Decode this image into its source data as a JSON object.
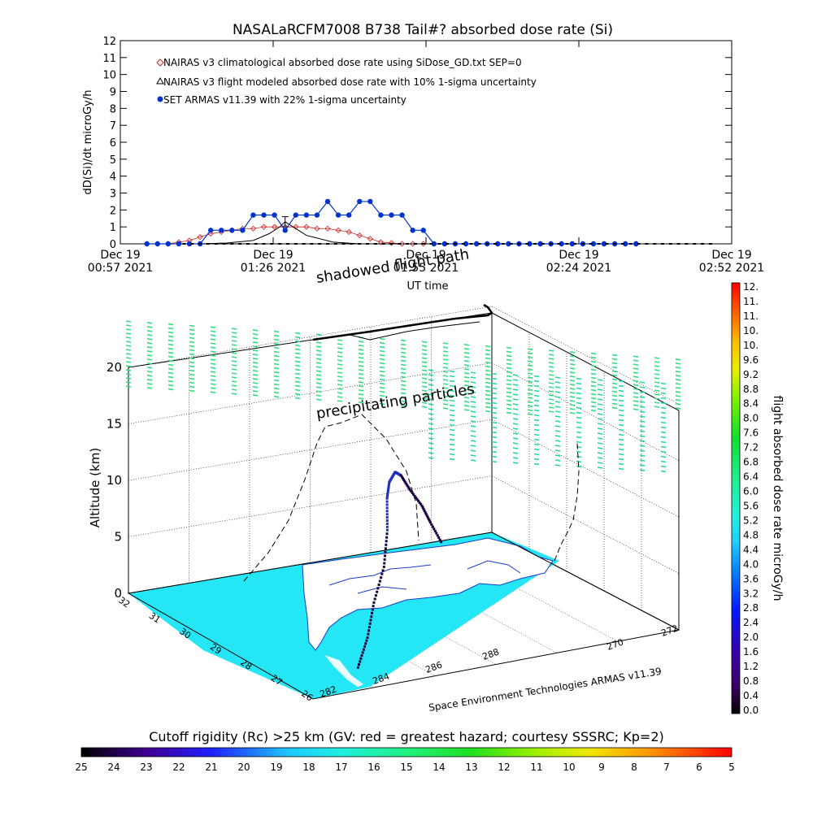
{
  "chart_data": [
    {
      "type": "line",
      "title": "NASALaRCFM7008  B738 Tail#? absorbed dose rate (Si)",
      "xlabel": "UT time",
      "ylabel": "dD(Si)/dt microGy/h",
      "ylim": [
        0,
        12
      ],
      "yticks": [
        "0",
        "1",
        "2",
        "3",
        "4",
        "5",
        "6",
        "7",
        "8",
        "9",
        "10",
        "11",
        "12"
      ],
      "xticks": [
        {
          "date": "Dec 19",
          "time": "00:57 2021"
        },
        {
          "date": "Dec 19",
          "time": "01:26 2021"
        },
        {
          "date": "Dec 19",
          "time": "01:55 2021"
        },
        {
          "date": "Dec 19",
          "time": "02:24 2021"
        },
        {
          "date": "Dec 19",
          "time": "02:52 2021"
        }
      ],
      "x_unit": "minutes after Dec 19 00:57 2021 UT",
      "xlim": [
        0,
        115
      ],
      "legend": [
        "NAIRAS v3 climatological absorbed dose rate using SiDose_GD.txt SEP=0",
        "NAIRAS v3 flight modeled absorbed dose rate with 10% 1-sigma uncertainty",
        "SET ARMAS v11.39 with 22% 1-sigma uncertainty"
      ],
      "series": [
        {
          "name": "NAIRAS v3 climatological absorbed dose rate using SiDose_GD.txt SEP=0",
          "color": "#cc2222",
          "x": [
            5,
            7,
            9,
            11,
            13,
            15,
            17,
            19,
            21,
            23,
            25,
            27,
            29,
            31,
            33,
            35,
            37,
            39,
            41,
            43,
            45,
            47,
            49,
            51,
            53,
            55,
            57,
            59,
            61,
            63,
            65,
            67,
            69,
            71,
            73,
            75,
            77,
            79,
            81,
            83,
            85,
            87,
            89,
            91,
            93,
            95,
            97
          ],
          "y": [
            0,
            0,
            0,
            0.1,
            0.2,
            0.4,
            0.6,
            0.7,
            0.8,
            0.9,
            0.9,
            1.0,
            1.0,
            1.0,
            1.0,
            1.0,
            0.9,
            0.9,
            0.8,
            0.7,
            0.5,
            0.3,
            0.1,
            0.05,
            0,
            0,
            0,
            0,
            0,
            0,
            0,
            0,
            0,
            0,
            0,
            0,
            0,
            0,
            0,
            0,
            0,
            0,
            0,
            0,
            0,
            0,
            0
          ]
        },
        {
          "name": "NAIRAS v3 flight modeled absorbed dose rate with 10% 1-sigma uncertainty",
          "color": "#000000",
          "x": [
            5,
            10,
            15,
            20,
            25,
            28,
            30,
            31,
            35,
            40,
            45,
            50,
            55,
            60,
            65,
            70,
            75,
            80,
            85,
            90,
            95,
            97
          ],
          "y": [
            0,
            0,
            0,
            0.05,
            0.2,
            0.6,
            1.0,
            1.3,
            0.5,
            0.1,
            0,
            0,
            0,
            0,
            0,
            0,
            0,
            0,
            0,
            0,
            0,
            0
          ],
          "err": [
            0,
            0,
            0,
            0,
            0,
            0,
            0,
            0.3,
            0,
            0,
            0,
            0,
            0,
            0,
            0,
            0,
            0,
            0,
            0,
            0,
            0,
            0
          ]
        },
        {
          "name": "SET ARMAS v11.39 with 22% 1-sigma uncertainty",
          "color": "#0033cc",
          "x": [
            5,
            7,
            9,
            11,
            13,
            15,
            17,
            19,
            21,
            23,
            25,
            27,
            29,
            31,
            33,
            35,
            37,
            39,
            41,
            43,
            45,
            47,
            49,
            51,
            53,
            55,
            57,
            59,
            61,
            63,
            65,
            67,
            69,
            71,
            73,
            75,
            77,
            79,
            81,
            83,
            85,
            87,
            89,
            91,
            93,
            95,
            97
          ],
          "y": [
            0,
            0,
            0,
            0,
            0,
            0,
            0.8,
            0.8,
            0.8,
            0.8,
            1.7,
            1.7,
            1.7,
            0.8,
            1.7,
            1.7,
            1.7,
            2.5,
            1.7,
            1.7,
            2.5,
            2.5,
            1.7,
            1.7,
            1.7,
            0.8,
            0.8,
            0,
            0,
            0,
            0,
            0,
            0,
            0,
            0,
            0,
            0,
            0,
            0,
            0,
            0,
            0,
            0,
            0,
            0,
            0,
            0
          ]
        }
      ]
    },
    {
      "type": "scatter",
      "title": "",
      "xlabel": "Space Environment Technologies ARMAS v11.39",
      "ylabel": "Altitude (km)",
      "zticks": [
        "0",
        "5",
        "10",
        "15",
        "20"
      ],
      "lat_ticks": [
        "32",
        "31",
        "30",
        "29",
        "28",
        "27",
        "26"
      ],
      "lon_ticks": [
        "282",
        "284",
        "286",
        "288",
        "270",
        "272"
      ],
      "annotations": [
        "shadowed flight path",
        "precipitating particles"
      ],
      "colorbar": {
        "label": "flight absorbed dose rate microGy/h",
        "ticks": [
          "0.0",
          "0.4",
          "0.8",
          "1.2",
          "1.6",
          "2.0",
          "2.4",
          "2.8",
          "3.2",
          "3.6",
          "4.0",
          "4.4",
          "4.8",
          "5.2",
          "5.6",
          "6.0",
          "6.4",
          "6.8",
          "7.2",
          "7.6",
          "8.0",
          "8.4",
          "8.8",
          "9.2",
          "9.6",
          "10.",
          "10.",
          "11.",
          "11.",
          "12."
        ]
      },
      "flight_path": [
        {
          "lat": 26.9,
          "lon": 284.0,
          "alt": 0.3
        },
        {
          "lat": 27.3,
          "lon": 284.6,
          "alt": 2.0
        },
        {
          "lat": 27.8,
          "lon": 285.2,
          "alt": 4.0
        },
        {
          "lat": 28.3,
          "lon": 285.9,
          "alt": 6.0
        },
        {
          "lat": 28.9,
          "lon": 286.5,
          "alt": 8.0
        },
        {
          "lat": 29.5,
          "lon": 287.0,
          "alt": 9.6
        },
        {
          "lat": 29.9,
          "lon": 287.4,
          "alt": 10.2
        },
        {
          "lat": 30.3,
          "lon": 287.9,
          "alt": 10.2
        },
        {
          "lat": 30.7,
          "lon": 288.4,
          "alt": 9.0
        },
        {
          "lat": 31.0,
          "lon": 288.9,
          "alt": 7.0
        },
        {
          "lat": 31.2,
          "lon": 289.4,
          "alt": 5.0
        },
        {
          "lat": 31.4,
          "lon": 289.8,
          "alt": 3.0
        },
        {
          "lat": 31.6,
          "lon": 290.3,
          "alt": 0.5
        }
      ]
    },
    {
      "type": "heatmap",
      "title": "Cutoff rigidity (Rc) >25 km (GV: red = greatest hazard; courtesy SSSRC; Kp=2)",
      "colorbar_ticks": [
        "25",
        "24",
        "23",
        "22",
        "21",
        "20",
        "19",
        "18",
        "17",
        "16",
        "15",
        "14",
        "13",
        "12",
        "11",
        "10",
        "9",
        "8",
        "7",
        "6",
        "5"
      ]
    }
  ]
}
